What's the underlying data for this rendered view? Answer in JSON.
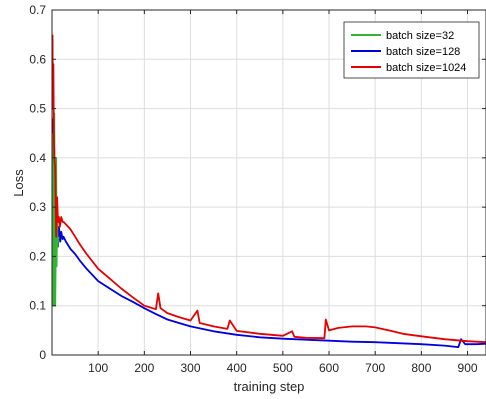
{
  "chart_data": {
    "type": "line",
    "title": "",
    "xlabel": "training step",
    "ylabel": "Loss",
    "xlim": [
      0,
      940
    ],
    "ylim": [
      0,
      0.7
    ],
    "xticks": [
      100,
      200,
      300,
      400,
      500,
      600,
      700,
      800,
      900
    ],
    "yticks": [
      0,
      0.1,
      0.2,
      0.3,
      0.4,
      0.5,
      0.6,
      0.7
    ],
    "grid": true,
    "legend_position": "top-right",
    "series": [
      {
        "name": "batch size=32",
        "color": "#33b233",
        "x": [
          1,
          2,
          3,
          4,
          5,
          6,
          7,
          8,
          9,
          10,
          11,
          12,
          14
        ],
        "y": [
          0.45,
          0.15,
          0.1,
          0.3,
          0.49,
          0.25,
          0.1,
          0.2,
          0.4,
          0.18,
          0.3,
          0.22,
          0.24
        ]
      },
      {
        "name": "batch size=128",
        "color": "#0000e0",
        "x": [
          1,
          3,
          5,
          6,
          8,
          9,
          11,
          13,
          15,
          18,
          20,
          23,
          25,
          30,
          40,
          50,
          60,
          75,
          100,
          125,
          150,
          175,
          200,
          225,
          250,
          275,
          300,
          350,
          400,
          450,
          500,
          550,
          600,
          650,
          700,
          750,
          800,
          850,
          880,
          886,
          895,
          920,
          940
        ],
        "y": [
          0.48,
          0.3,
          0.42,
          0.17,
          0.33,
          0.18,
          0.25,
          0.22,
          0.26,
          0.23,
          0.25,
          0.235,
          0.24,
          0.23,
          0.215,
          0.205,
          0.192,
          0.175,
          0.15,
          0.135,
          0.12,
          0.108,
          0.095,
          0.083,
          0.072,
          0.065,
          0.058,
          0.048,
          0.041,
          0.036,
          0.033,
          0.031,
          0.029,
          0.027,
          0.026,
          0.024,
          0.022,
          0.019,
          0.016,
          0.032,
          0.022,
          0.022,
          0.023
        ]
      },
      {
        "name": "batch size=1024",
        "color": "#e60000",
        "x": [
          1,
          2,
          3,
          4,
          5,
          7,
          9,
          11,
          13,
          15,
          17,
          20,
          23,
          25,
          30,
          40,
          50,
          60,
          75,
          100,
          125,
          150,
          175,
          200,
          225,
          230,
          235,
          250,
          275,
          300,
          315,
          320,
          350,
          380,
          385,
          400,
          450,
          500,
          520,
          525,
          550,
          590,
          593,
          600,
          620,
          650,
          680,
          700,
          730,
          760,
          800,
          850,
          900,
          940
        ],
        "y": [
          0.65,
          0.5,
          0.59,
          0.45,
          0.4,
          0.38,
          0.24,
          0.32,
          0.27,
          0.28,
          0.26,
          0.28,
          0.27,
          0.27,
          0.265,
          0.255,
          0.24,
          0.225,
          0.205,
          0.175,
          0.155,
          0.135,
          0.117,
          0.1,
          0.093,
          0.125,
          0.095,
          0.085,
          0.077,
          0.07,
          0.09,
          0.065,
          0.058,
          0.053,
          0.07,
          0.049,
          0.043,
          0.039,
          0.048,
          0.037,
          0.035,
          0.034,
          0.072,
          0.05,
          0.055,
          0.058,
          0.058,
          0.056,
          0.05,
          0.043,
          0.038,
          0.032,
          0.028,
          0.026
        ]
      }
    ]
  }
}
